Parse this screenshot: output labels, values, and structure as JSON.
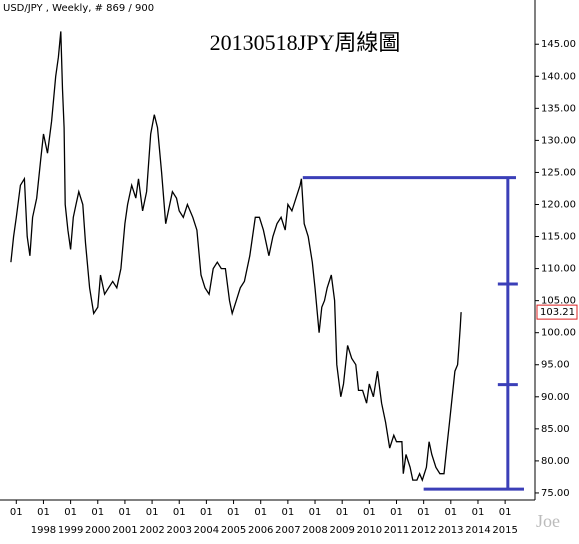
{
  "chart_data": {
    "type": "line",
    "header": "USD/JPY , Weekly, # 869 / 900",
    "title": "20130518JPY周線圖",
    "watermark": "Joe",
    "last_price": 103.21,
    "color": "#000000",
    "x": [
      1996.8,
      1996.9,
      1997.0,
      1997.15,
      1997.3,
      1997.4,
      1997.5,
      1997.6,
      1997.75,
      1997.9,
      1998.0,
      1998.15,
      1998.3,
      1998.45,
      1998.55,
      1998.64,
      1998.7,
      1998.76,
      1998.8,
      1998.9,
      1999.0,
      1999.1,
      1999.2,
      1999.3,
      1999.45,
      1999.55,
      1999.7,
      1999.85,
      2000.0,
      2000.1,
      2000.25,
      2000.4,
      2000.55,
      2000.7,
      2000.85,
      2001.0,
      2001.1,
      2001.25,
      2001.4,
      2001.5,
      2001.65,
      2001.8,
      2001.95,
      2002.08,
      2002.2,
      2002.35,
      2002.5,
      2002.6,
      2002.75,
      2002.9,
      2003.0,
      2003.15,
      2003.3,
      2003.5,
      2003.65,
      2003.8,
      2003.95,
      2004.1,
      2004.25,
      2004.4,
      2004.55,
      2004.7,
      2004.85,
      2004.95,
      2005.1,
      2005.25,
      2005.4,
      2005.6,
      2005.8,
      2005.95,
      2006.1,
      2006.3,
      2006.45,
      2006.6,
      2006.75,
      2006.9,
      2007.0,
      2007.15,
      2007.3,
      2007.45,
      2007.5,
      2007.6,
      2007.75,
      2007.9,
      2008.0,
      2008.15,
      2008.25,
      2008.35,
      2008.45,
      2008.6,
      2008.72,
      2008.8,
      2008.95,
      2009.05,
      2009.2,
      2009.35,
      2009.5,
      2009.6,
      2009.75,
      2009.9,
      2010.0,
      2010.15,
      2010.3,
      2010.45,
      2010.6,
      2010.75,
      2010.9,
      2011.0,
      2011.2,
      2011.25,
      2011.35,
      2011.5,
      2011.6,
      2011.75,
      2011.85,
      2011.95,
      2012.1,
      2012.2,
      2012.3,
      2012.45,
      2012.6,
      2012.75,
      2012.85,
      2012.95,
      2013.05,
      2013.15,
      2013.25,
      2013.3,
      2013.35,
      2013.38
    ],
    "values": [
      111,
      115,
      118,
      123,
      124,
      115,
      112,
      118,
      121,
      127,
      131,
      128,
      133,
      140,
      143,
      147,
      138,
      132,
      120,
      116,
      113,
      118,
      120,
      122,
      120,
      114,
      107,
      103,
      104,
      109,
      106,
      107,
      108,
      107,
      110,
      117,
      120,
      123,
      121,
      124,
      119,
      122,
      131,
      134,
      132,
      125,
      117,
      119,
      122,
      121,
      119,
      118,
      120,
      118,
      116,
      109,
      107,
      106,
      110,
      111,
      110,
      110,
      105,
      103,
      105,
      107,
      108,
      112,
      118,
      118,
      116,
      112,
      115,
      117,
      118,
      116,
      120,
      119,
      121,
      123,
      124,
      117,
      115,
      111,
      107,
      100,
      104,
      105,
      107,
      109,
      105,
      95,
      90,
      92,
      98,
      96,
      95,
      91,
      91,
      89,
      92,
      90,
      94,
      89,
      86,
      82,
      84,
      83,
      83,
      78,
      81,
      79,
      77,
      77,
      78,
      77,
      79,
      83,
      81,
      79,
      78,
      78,
      82,
      86,
      90,
      94,
      95,
      98,
      101,
      103.21
    ],
    "xlim": [
      1996.4,
      2016.1
    ],
    "ylim": [
      73.9,
      151.9
    ],
    "xticks": [
      {
        "value": 1997,
        "label": null,
        "month": "01"
      },
      {
        "value": 1998,
        "label": "1998",
        "month": "01"
      },
      {
        "value": 1999,
        "label": "1999",
        "month": "01"
      },
      {
        "value": 2000,
        "label": "2000",
        "month": "01"
      },
      {
        "value": 2001,
        "label": "2001",
        "month": "01"
      },
      {
        "value": 2002,
        "label": "2002",
        "month": "01"
      },
      {
        "value": 2003,
        "label": "2003",
        "month": "01"
      },
      {
        "value": 2004,
        "label": "2004",
        "month": "01"
      },
      {
        "value": 2005,
        "label": "2005",
        "month": "01"
      },
      {
        "value": 2006,
        "label": "2006",
        "month": "01"
      },
      {
        "value": 2007,
        "label": "2007",
        "month": "01"
      },
      {
        "value": 2008,
        "label": "2008",
        "month": "01"
      },
      {
        "value": 2009,
        "label": "2009",
        "month": "01"
      },
      {
        "value": 2010,
        "label": "2010",
        "month": "01"
      },
      {
        "value": 2011,
        "label": "2011",
        "month": "01"
      },
      {
        "value": 2012,
        "label": "2012",
        "month": "01"
      },
      {
        "value": 2013,
        "label": "2013",
        "month": "01"
      },
      {
        "value": 2014,
        "label": "2014",
        "month": "01"
      },
      {
        "value": 2015,
        "label": "2015",
        "month": "01"
      }
    ],
    "yticks": [
      {
        "value": 75,
        "label": "75.00"
      },
      {
        "value": 80,
        "label": "80.00"
      },
      {
        "value": 85,
        "label": "85.00"
      },
      {
        "value": 90,
        "label": "90.00"
      },
      {
        "value": 95,
        "label": "95.00"
      },
      {
        "value": 100,
        "label": "100.00"
      },
      {
        "value": 105,
        "label": "105.00"
      },
      {
        "value": 110,
        "label": "110.00"
      },
      {
        "value": 115,
        "label": "115.00"
      },
      {
        "value": 120,
        "label": "120.00"
      },
      {
        "value": 125,
        "label": "125.00"
      },
      {
        "value": 130,
        "label": "130.00"
      },
      {
        "value": 135,
        "label": "135.00"
      },
      {
        "value": 140,
        "label": "140.00"
      },
      {
        "value": 145,
        "label": "145.00"
      }
    ],
    "measure": {
      "color": "#3b3fb8",
      "top": 124.2,
      "bottom": 75.6,
      "top_x_start": 2007.55,
      "bottom_x_start": 2012.0,
      "x": 2015.1,
      "x_end": 2015.4,
      "marks": [
        107.6,
        91.9
      ]
    }
  }
}
